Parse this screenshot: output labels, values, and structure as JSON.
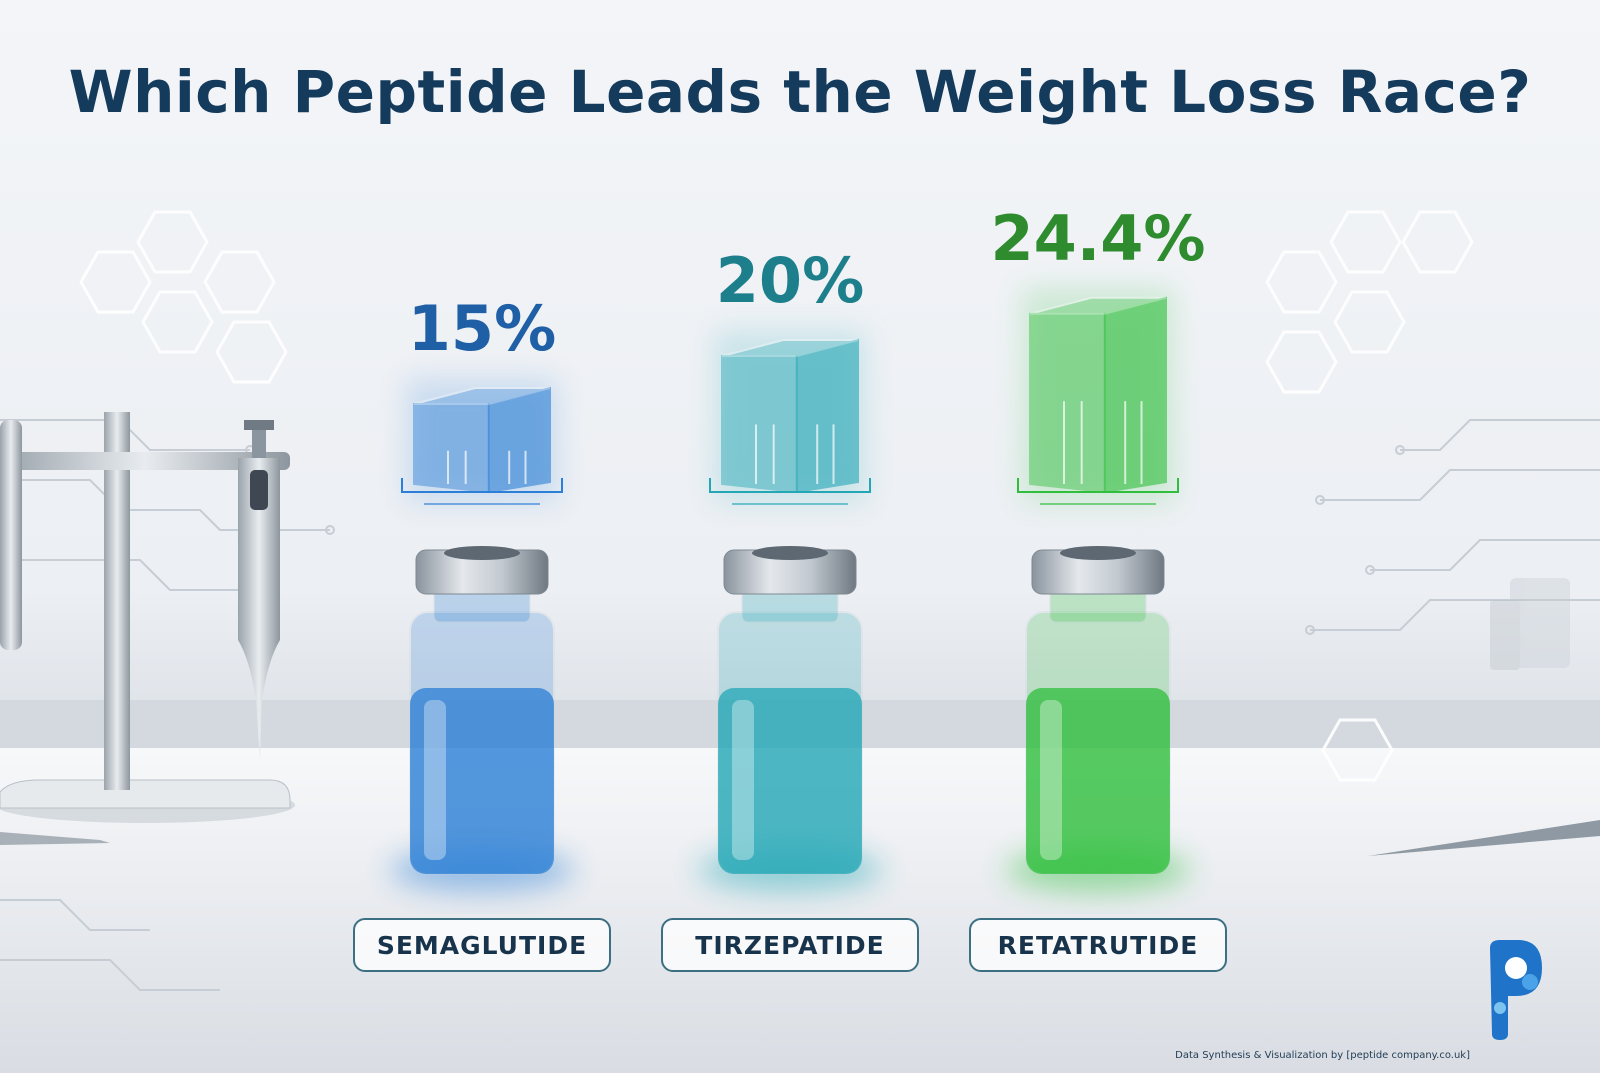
{
  "title": "Which Peptide Leads the Weight Loss Race?",
  "credit": "Data Synthesis & Visualization by [peptide company.co.uk]",
  "chart_data": {
    "type": "bar",
    "title": "Which Peptide Leads the Weight Loss Race?",
    "categories": [
      "SEMAGLUTIDE",
      "TIRZEPATIDE",
      "RETATRUTIDE"
    ],
    "values": [
      15,
      20,
      24.4
    ],
    "value_labels": [
      "15%",
      "20%",
      "24.4%"
    ],
    "unit": "%",
    "colors": [
      "#2b7fd6",
      "#23a7b5",
      "#2fbf3c"
    ],
    "label_colors": [
      "#1f5fa6",
      "#1e7f8c",
      "#2e8b2e"
    ],
    "xlabel": "",
    "ylabel": "",
    "grid": false,
    "legend": "none"
  }
}
